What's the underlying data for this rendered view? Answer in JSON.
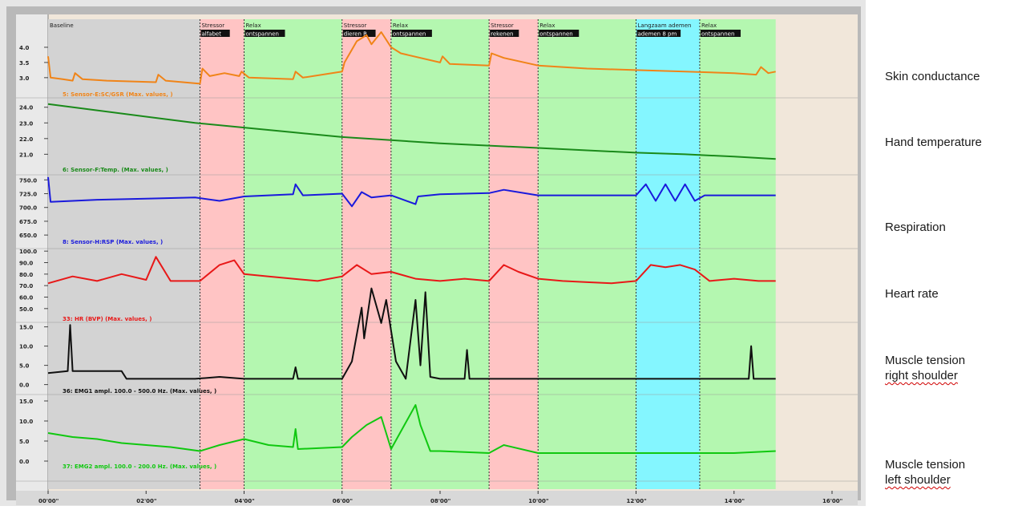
{
  "segments": [
    {
      "start": 0,
      "end": 3.1,
      "label1": "Baseline",
      "label2": "",
      "color": "#d3d3d3"
    },
    {
      "start": 3.1,
      "end": 4.0,
      "label1": "Stressor",
      "label2": "alfabet",
      "color": "#ffc4c4"
    },
    {
      "start": 4.0,
      "end": 6.0,
      "label1": "Relax",
      "label2": "ontspannen",
      "color": "#b4f7b0"
    },
    {
      "start": 6.0,
      "end": 7.0,
      "label1": "Stressor",
      "label2": "dieren R",
      "color": "#ffc4c4"
    },
    {
      "start": 7.0,
      "end": 9.0,
      "label1": "Relax",
      "label2": "ontspannen",
      "color": "#b4f7b0"
    },
    {
      "start": 9.0,
      "end": 10.0,
      "label1": "Stressor",
      "label2": "rekenen",
      "color": "#ffc4c4"
    },
    {
      "start": 10.0,
      "end": 12.0,
      "label1": "Relax",
      "label2": "ontspannen",
      "color": "#b4f7b0"
    },
    {
      "start": 12.0,
      "end": 13.3,
      "label1": "Langzaam ademen",
      "label2": "ademen 8 pm",
      "color": "#84f6ff"
    },
    {
      "start": 13.3,
      "end": 14.85,
      "label1": "Relax",
      "label2": "ontspannen",
      "color": "#b4f7b0"
    }
  ],
  "right_labels": [
    {
      "lines": [
        "Skin conductance"
      ]
    },
    {
      "lines": [
        "Hand temperature"
      ]
    },
    {
      "lines": [
        "Respiration"
      ]
    },
    {
      "lines": [
        "Heart rate"
      ]
    },
    {
      "lines": [
        "Muscle tension",
        "right shoulder"
      ]
    },
    {
      "lines": [
        "Muscle tension",
        "left shoulder"
      ]
    }
  ],
  "chart_data": {
    "type": "line",
    "title": "",
    "xlabel": "",
    "x_ticks": [
      "00'00\"",
      "02'00\"",
      "04'00\"",
      "06'00\"",
      "08'00\"",
      "10'00\"",
      "12'00\"",
      "14'00\"",
      "16'00\""
    ],
    "xlim": [
      0,
      16
    ],
    "grid": false,
    "panels": [
      {
        "name": "5: Sensor-E:SC/GSR (Max. values, )",
        "color": "#f08418",
        "ylim": [
          2.6,
          4.5
        ],
        "yticks": [
          "4.0",
          "3.5",
          "3.0"
        ],
        "ytick_values": [
          4.0,
          3.5,
          3.0
        ],
        "x": [
          0.0,
          0.05,
          0.3,
          0.5,
          0.55,
          0.7,
          1.2,
          2.2,
          2.25,
          2.4,
          3.1,
          3.15,
          3.3,
          3.6,
          3.9,
          3.95,
          4.1,
          5.0,
          5.05,
          5.2,
          6.0,
          6.05,
          6.3,
          6.5,
          6.6,
          6.8,
          7.0,
          7.2,
          8.0,
          8.05,
          8.2,
          9.0,
          9.05,
          9.3,
          10.0,
          11.0,
          12.0,
          13.0,
          14.0,
          14.45,
          14.55,
          14.7,
          14.85
        ],
        "y": [
          3.7,
          3.0,
          2.95,
          2.9,
          3.15,
          2.95,
          2.9,
          2.85,
          3.1,
          2.9,
          2.8,
          3.3,
          3.05,
          3.15,
          3.05,
          3.2,
          3.0,
          2.95,
          3.2,
          3.0,
          3.2,
          3.5,
          4.2,
          4.4,
          4.1,
          4.5,
          4.0,
          3.8,
          3.5,
          3.7,
          3.45,
          3.4,
          3.8,
          3.65,
          3.4,
          3.3,
          3.25,
          3.2,
          3.15,
          3.1,
          3.35,
          3.15,
          3.2
        ]
      },
      {
        "name": "6: Sensor-F:Temp. (Max. values, )",
        "color": "#1a8a1a",
        "ylim": [
          20.2,
          24.6
        ],
        "yticks": [
          "24.0",
          "23.0",
          "22.0",
          "21.0"
        ],
        "ytick_values": [
          24.0,
          23.0,
          22.0,
          21.0
        ],
        "x": [
          0.0,
          1.0,
          2.0,
          3.0,
          4.0,
          5.0,
          6.0,
          7.0,
          8.0,
          9.0,
          10.0,
          11.0,
          12.0,
          13.0,
          14.0,
          14.85
        ],
        "y": [
          24.2,
          23.8,
          23.4,
          23.0,
          22.7,
          22.4,
          22.1,
          21.9,
          21.7,
          21.55,
          21.4,
          21.25,
          21.1,
          21.0,
          20.85,
          20.7
        ]
      },
      {
        "name": "8: Sensor-H:RSP (Max. values, )",
        "color": "#1a1adc",
        "ylim": [
          640,
          765
        ],
        "yticks": [
          "750.0",
          "725.0",
          "700.0",
          "675.0",
          "650.0"
        ],
        "ytick_values": [
          750,
          725,
          700,
          675,
          650
        ],
        "x": [
          0.0,
          0.05,
          0.5,
          1.0,
          2.0,
          3.0,
          3.5,
          4.0,
          5.0,
          5.05,
          5.2,
          6.0,
          6.2,
          6.4,
          6.6,
          7.0,
          7.5,
          7.55,
          8.0,
          9.0,
          9.3,
          10.0,
          11.0,
          12.0,
          12.2,
          12.4,
          12.6,
          12.8,
          13.0,
          13.2,
          13.4,
          14.0,
          14.85
        ],
        "y": [
          755,
          710,
          712,
          714,
          716,
          718,
          712,
          720,
          724,
          742,
          722,
          725,
          702,
          728,
          718,
          722,
          706,
          720,
          724,
          726,
          732,
          722,
          722,
          722,
          742,
          712,
          742,
          712,
          742,
          712,
          722,
          722,
          722
        ]
      },
      {
        "name": "33: HR (BVP) (Max. values, )",
        "color": "#e81818",
        "ylim": [
          45,
          105
        ],
        "yticks": [
          "100.0",
          "90.0",
          "80.0",
          "70.0",
          "60.0",
          "50.0"
        ],
        "ytick_values": [
          100,
          90,
          80,
          70,
          60,
          50
        ],
        "x": [
          0.0,
          0.5,
          1.0,
          1.5,
          2.0,
          2.2,
          2.5,
          3.1,
          3.5,
          3.8,
          4.0,
          4.5,
          5.0,
          5.5,
          6.0,
          6.3,
          6.6,
          7.0,
          7.5,
          8.0,
          8.5,
          9.0,
          9.3,
          9.6,
          10.0,
          10.5,
          11.0,
          11.5,
          12.0,
          12.3,
          12.6,
          12.9,
          13.2,
          13.5,
          14.0,
          14.5,
          14.85
        ],
        "y": [
          72,
          78,
          74,
          80,
          75,
          95,
          74,
          74,
          88,
          92,
          80,
          78,
          76,
          74,
          78,
          88,
          80,
          82,
          76,
          74,
          76,
          74,
          88,
          82,
          76,
          74,
          73,
          72,
          74,
          88,
          86,
          88,
          84,
          74,
          76,
          74,
          74
        ]
      },
      {
        "name": "36: EMG1 ampl.    100.0 - 500.0 Hz. (Max. values, )",
        "color": "#101010",
        "ylim": [
          -0.5,
          17
        ],
        "yticks": [
          "15.0",
          "10.0",
          "5.0",
          "0.0"
        ],
        "ytick_values": [
          15,
          10,
          5,
          0
        ],
        "x": [
          0.0,
          0.4,
          0.45,
          0.5,
          1.0,
          1.5,
          1.6,
          3.0,
          3.5,
          4.0,
          5.0,
          5.05,
          5.1,
          6.0,
          6.2,
          6.4,
          6.45,
          6.6,
          6.8,
          6.9,
          7.1,
          7.3,
          7.5,
          7.6,
          7.7,
          7.8,
          8.0,
          8.5,
          8.55,
          8.6,
          9.0,
          10.0,
          11.0,
          12.0,
          13.0,
          14.0,
          14.3,
          14.35,
          14.4,
          14.85
        ],
        "y": [
          3.0,
          3.5,
          15.5,
          3.5,
          3.5,
          3.5,
          1.5,
          1.5,
          2.0,
          1.5,
          1.5,
          4.5,
          1.5,
          1.5,
          6.0,
          20.0,
          12.0,
          25.0,
          16.0,
          22.0,
          6.0,
          1.5,
          22.0,
          5.0,
          24.0,
          2.0,
          1.5,
          1.5,
          9.0,
          1.5,
          1.5,
          1.5,
          1.5,
          1.5,
          1.5,
          1.5,
          1.5,
          10.0,
          1.5,
          1.5
        ]
      },
      {
        "name": "37: EMG2 ampl.    100.0 - 200.0 Hz. (Max. values, )",
        "color": "#10c810",
        "ylim": [
          -1,
          17
        ],
        "yticks": [
          "15.0",
          "10.0",
          "5.0",
          "0.0"
        ],
        "ytick_values": [
          15,
          10,
          5,
          0
        ],
        "x": [
          0.0,
          0.5,
          1.0,
          1.5,
          2.0,
          2.5,
          3.1,
          3.5,
          4.0,
          4.5,
          5.0,
          5.05,
          5.1,
          6.0,
          6.2,
          6.5,
          6.8,
          7.0,
          7.5,
          7.6,
          7.8,
          8.0,
          9.0,
          9.3,
          10.0,
          11.0,
          12.0,
          13.0,
          14.0,
          14.85
        ],
        "y": [
          7.0,
          6.0,
          5.5,
          4.5,
          4.0,
          3.5,
          2.5,
          4.0,
          5.5,
          4.0,
          3.5,
          8.0,
          3.0,
          3.5,
          6.0,
          9.0,
          11.0,
          3.0,
          14.0,
          9.0,
          2.5,
          2.5,
          2.0,
          4.0,
          2.0,
          2.0,
          2.0,
          2.0,
          2.0,
          2.5
        ]
      }
    ]
  }
}
